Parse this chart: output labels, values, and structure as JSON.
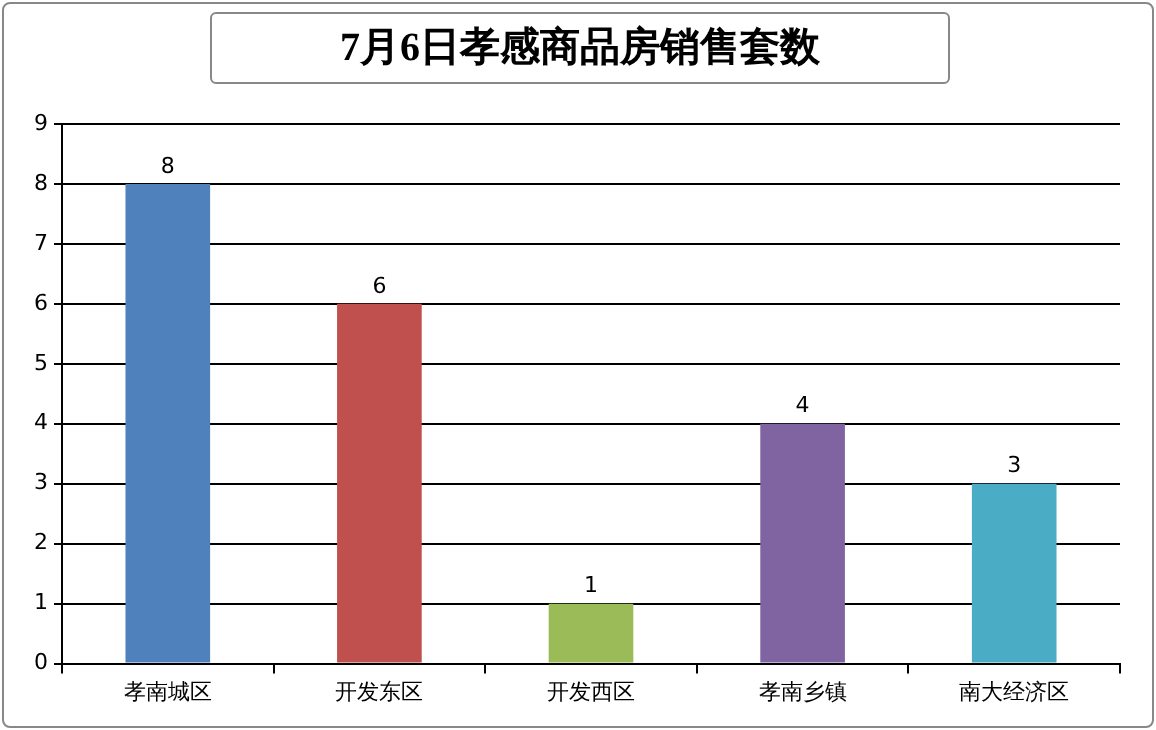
{
  "chart_data": {
    "type": "bar",
    "title": "7月6日孝感商品房销售套数",
    "categories": [
      "孝南城区",
      "开发东区",
      "开发西区",
      "孝南乡镇",
      "南大经济区"
    ],
    "values": [
      8,
      6,
      1,
      4,
      3
    ],
    "colors": [
      "#4f81bd",
      "#c0504d",
      "#9bbb59",
      "#8064a2",
      "#4bacc6"
    ],
    "ylim": [
      0,
      9
    ],
    "yticks": [
      0,
      1,
      2,
      3,
      4,
      5,
      6,
      7,
      8,
      9
    ],
    "grid": "y",
    "data_labels": true,
    "legend": false
  }
}
